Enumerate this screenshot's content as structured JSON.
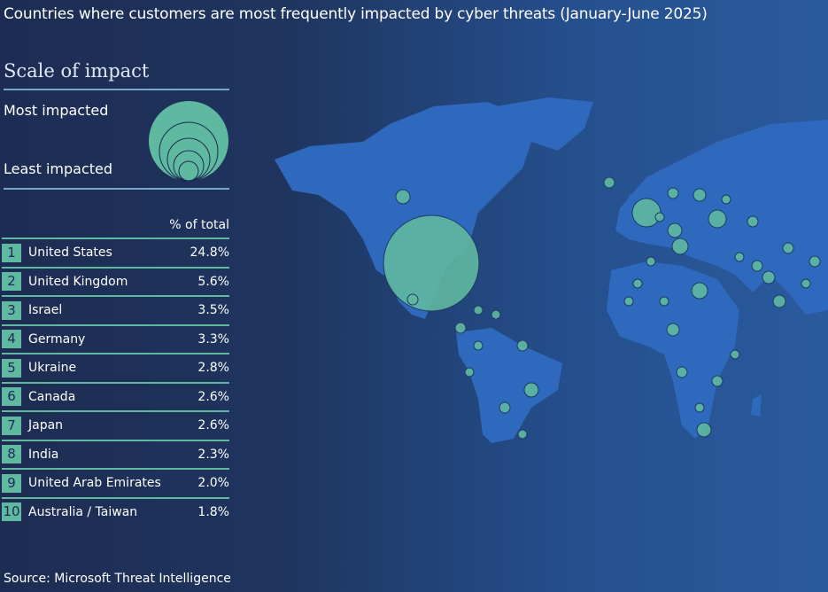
{
  "title": "Countries where customers are most frequently impacted by cyber threats  (January-June 2025)",
  "legend": {
    "heading": "Scale of impact",
    "most": "Most impacted",
    "least": "Least impacted"
  },
  "table": {
    "column_header": "% of total",
    "rows": [
      {
        "rank": "1",
        "country": "United States",
        "pct": "24.8%"
      },
      {
        "rank": "2",
        "country": "United Kingdom",
        "pct": "5.6%"
      },
      {
        "rank": "3",
        "country": "Israel",
        "pct": "3.5%"
      },
      {
        "rank": "4",
        "country": "Germany",
        "pct": "3.3%"
      },
      {
        "rank": "5",
        "country": "Ukraine",
        "pct": "2.8%"
      },
      {
        "rank": "6",
        "country": "Canada",
        "pct": "2.6%"
      },
      {
        "rank": "7",
        "country": "Japan",
        "pct": "2.6%"
      },
      {
        "rank": "8",
        "country": "India",
        "pct": "2.3%"
      },
      {
        "rank": "9",
        "country": "United Arab Emirates",
        "pct": "2.0%"
      },
      {
        "rank": "10",
        "country": "Australia / Taiwan",
        "pct": "1.8%"
      }
    ]
  },
  "source": "Source: Microsoft Threat Intelligence",
  "colors": {
    "background": "#1d2c52",
    "land": "#2f69bd",
    "bubble": "#5fb8a0",
    "rule": "#7aa6c8"
  }
}
